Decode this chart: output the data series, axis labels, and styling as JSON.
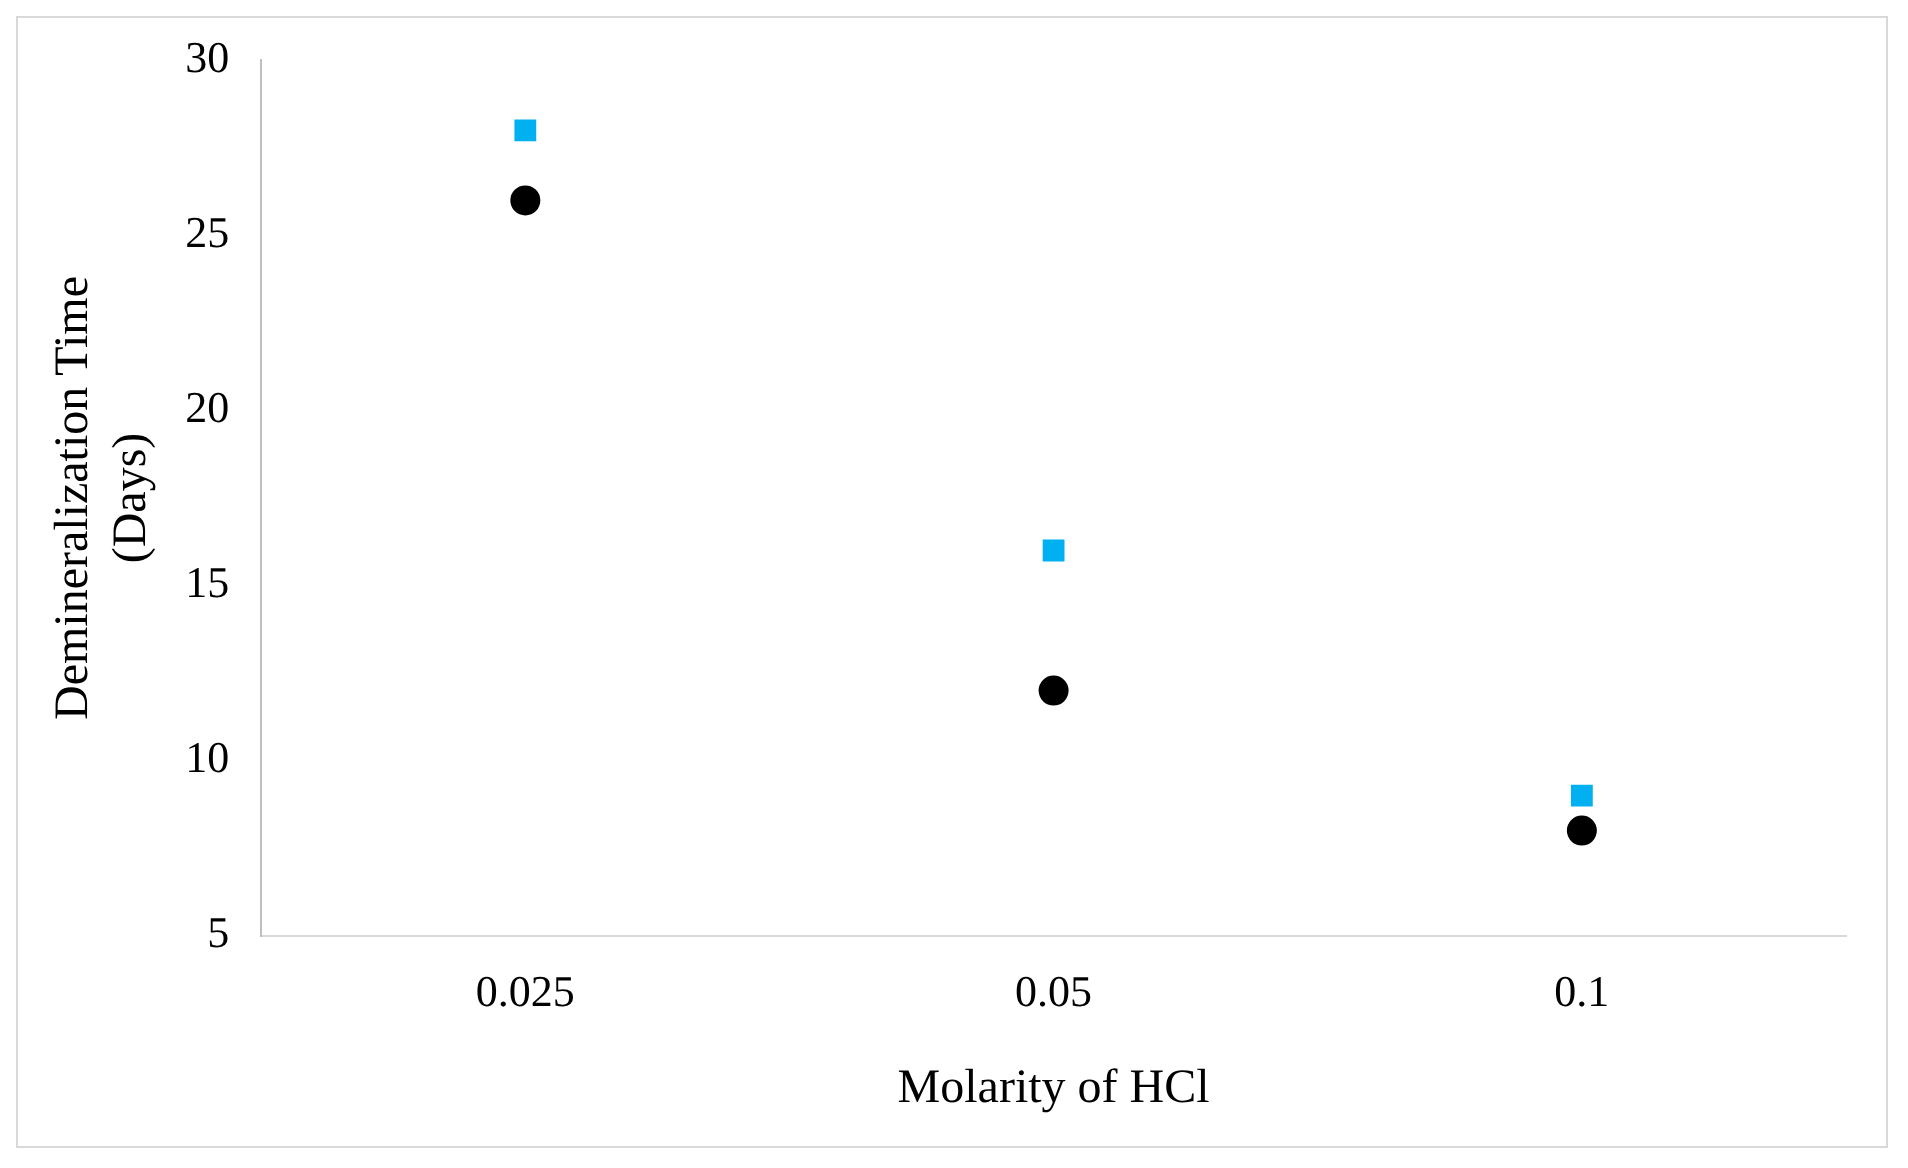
{
  "chart_data": {
    "type": "scatter",
    "xlabel": "Molarity of HCl",
    "ylabel": "Demineralization Time (Days)",
    "categories": [
      "0.025",
      "0.05",
      "0.1"
    ],
    "series": [
      {
        "color": "#00b0f0",
        "marker": "square",
        "values": [
          28,
          16,
          9
        ]
      },
      {
        "color": "#000000",
        "marker": "circle",
        "values": [
          26,
          12,
          8
        ]
      }
    ],
    "ylim": [
      5,
      30
    ],
    "yticks": [
      5,
      10,
      15,
      20,
      25,
      30
    ],
    "grid": false,
    "legend": false
  }
}
